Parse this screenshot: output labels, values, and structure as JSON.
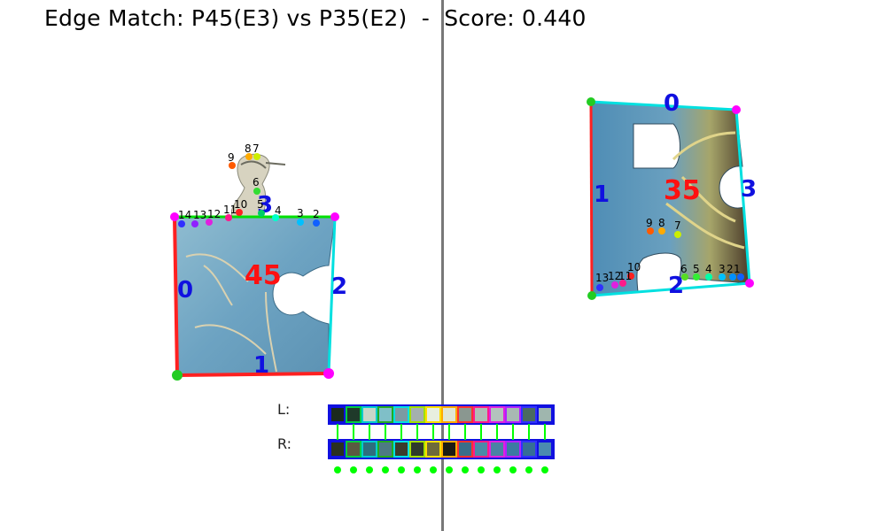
{
  "title": "Edge Match: P45(E3) vs P35(E2)  -  Score: 0.440",
  "left_piece": {
    "id_label": "45",
    "edge_labels": [
      "0",
      "1",
      "2",
      "3"
    ],
    "point_labels": [
      "2",
      "3",
      "4",
      "5",
      "6",
      "7",
      "8",
      "9",
      "10",
      "11",
      "12",
      "13",
      "14"
    ]
  },
  "right_piece": {
    "id_label": "35",
    "edge_labels": [
      "0",
      "1",
      "2",
      "3"
    ],
    "point_labels": [
      "1",
      "2",
      "3",
      "4",
      "5",
      "6",
      "7",
      "8",
      "9",
      "10",
      "11",
      "12",
      "13"
    ]
  },
  "strip": {
    "left_label": "L:",
    "right_label": "R:",
    "left_colors": [
      "#1b2a1e",
      "#1f3a2a",
      "#c7d6c8",
      "#7fbfc8",
      "#7c9aa3",
      "#a4b0ae",
      "#e8efe0",
      "#dfe6d6",
      "#8a9790",
      "#aebdb6",
      "#b3c2bd",
      "#a8b9b3",
      "#4a6b60",
      "#9fb6ae"
    ],
    "right_colors": [
      "#2a3020",
      "#5a5a40",
      "#2e6e7e",
      "#4d7a83",
      "#3b3c2c",
      "#2e3a2c",
      "#6e6a3a",
      "#1c1c14",
      "#3a6e8a",
      "#4a8aa8",
      "#4a82a4",
      "#3c7aa2",
      "#356e96",
      "#4a8ab0"
    ],
    "match_colors": [
      "#00ff00",
      "#00ff00",
      "#00ff00",
      "#00ff00",
      "#00ff00",
      "#00ff00",
      "#00ff00",
      "#00ff00",
      "#00ff00",
      "#00ff00",
      "#00ff00",
      "#00ff00",
      "#00ff00",
      "#00ff00"
    ]
  },
  "colors": {
    "edge0": "#ff2020",
    "edge_match_left": "#00e000",
    "edge_match_right": "#00e0e0",
    "edge3_left": "#00e0e0",
    "edge_label": "#1010e0",
    "id_label": "#ff1010",
    "corner_green": "#22cc22",
    "corner_magenta": "#ff00ff",
    "divider": "#787878"
  }
}
